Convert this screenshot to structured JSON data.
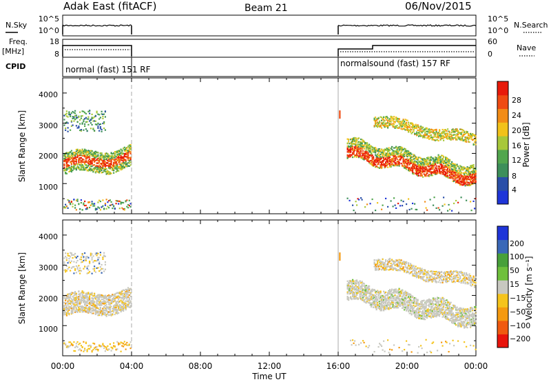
{
  "header": {
    "station": "Adak East (fitACF)",
    "beam": "Beam 21",
    "date": "06/Nov/2015"
  },
  "labels": {
    "nsky": "N.Sky",
    "nsearch": "N.Search",
    "freq_top": "Freq.",
    "freq_unit": "[MHz]",
    "nave": "Nave",
    "cpid": "CPID",
    "exp1": "normal (fast) 151 RF",
    "exp2": "normalsound (fast) 157 RF"
  },
  "colors": {
    "power": [
      "#1f35d8",
      "#2a4fa8",
      "#3d8f5a",
      "#52a64e",
      "#a8c83a",
      "#f2c21a",
      "#f28c16",
      "#ef4b12",
      "#e81a0a"
    ],
    "velocity": [
      "#e8140c",
      "#f05a10",
      "#f59a10",
      "#f5c41c",
      "#c8c8c0",
      "#6fc03c",
      "#48a03a",
      "#3a68b8",
      "#1f35d8"
    ]
  },
  "chart_data": [
    {
      "type": "line",
      "name": "noise-panel",
      "y_left_ticks": [
        "10^5",
        "10^0"
      ],
      "y_right_ticks": [
        "10^5",
        "10^0"
      ]
    },
    {
      "type": "line",
      "name": "freq-panel",
      "y_left_ticks": [
        "18",
        "8"
      ],
      "y_right_ticks": [
        "60",
        "0"
      ]
    },
    {
      "type": "heatmap",
      "name": "power-panel",
      "ylabel": "Slant Range [km]",
      "yticks": [
        "1000",
        "2000",
        "3000",
        "4000"
      ],
      "colorbar_label": "Power [dB]",
      "colorbar_ticks": [
        "4",
        "8",
        "12",
        "16",
        "20",
        "24",
        "28"
      ]
    },
    {
      "type": "heatmap",
      "name": "velocity-panel",
      "ylabel": "Slant Range [km]",
      "yticks": [
        "1000",
        "2000",
        "3000",
        "4000"
      ],
      "colorbar_label": "Velocity [m s⁻¹]",
      "colorbar_ticks": [
        "200",
        "100",
        "50",
        "15",
        "−15",
        "−50",
        "−100",
        "−200"
      ],
      "xlabel": "Time UT",
      "xticks": [
        "00:00",
        "04:00",
        "08:00",
        "12:00",
        "16:00",
        "20:00",
        "00:00"
      ],
      "xlim_hours": [
        0,
        24
      ]
    }
  ]
}
